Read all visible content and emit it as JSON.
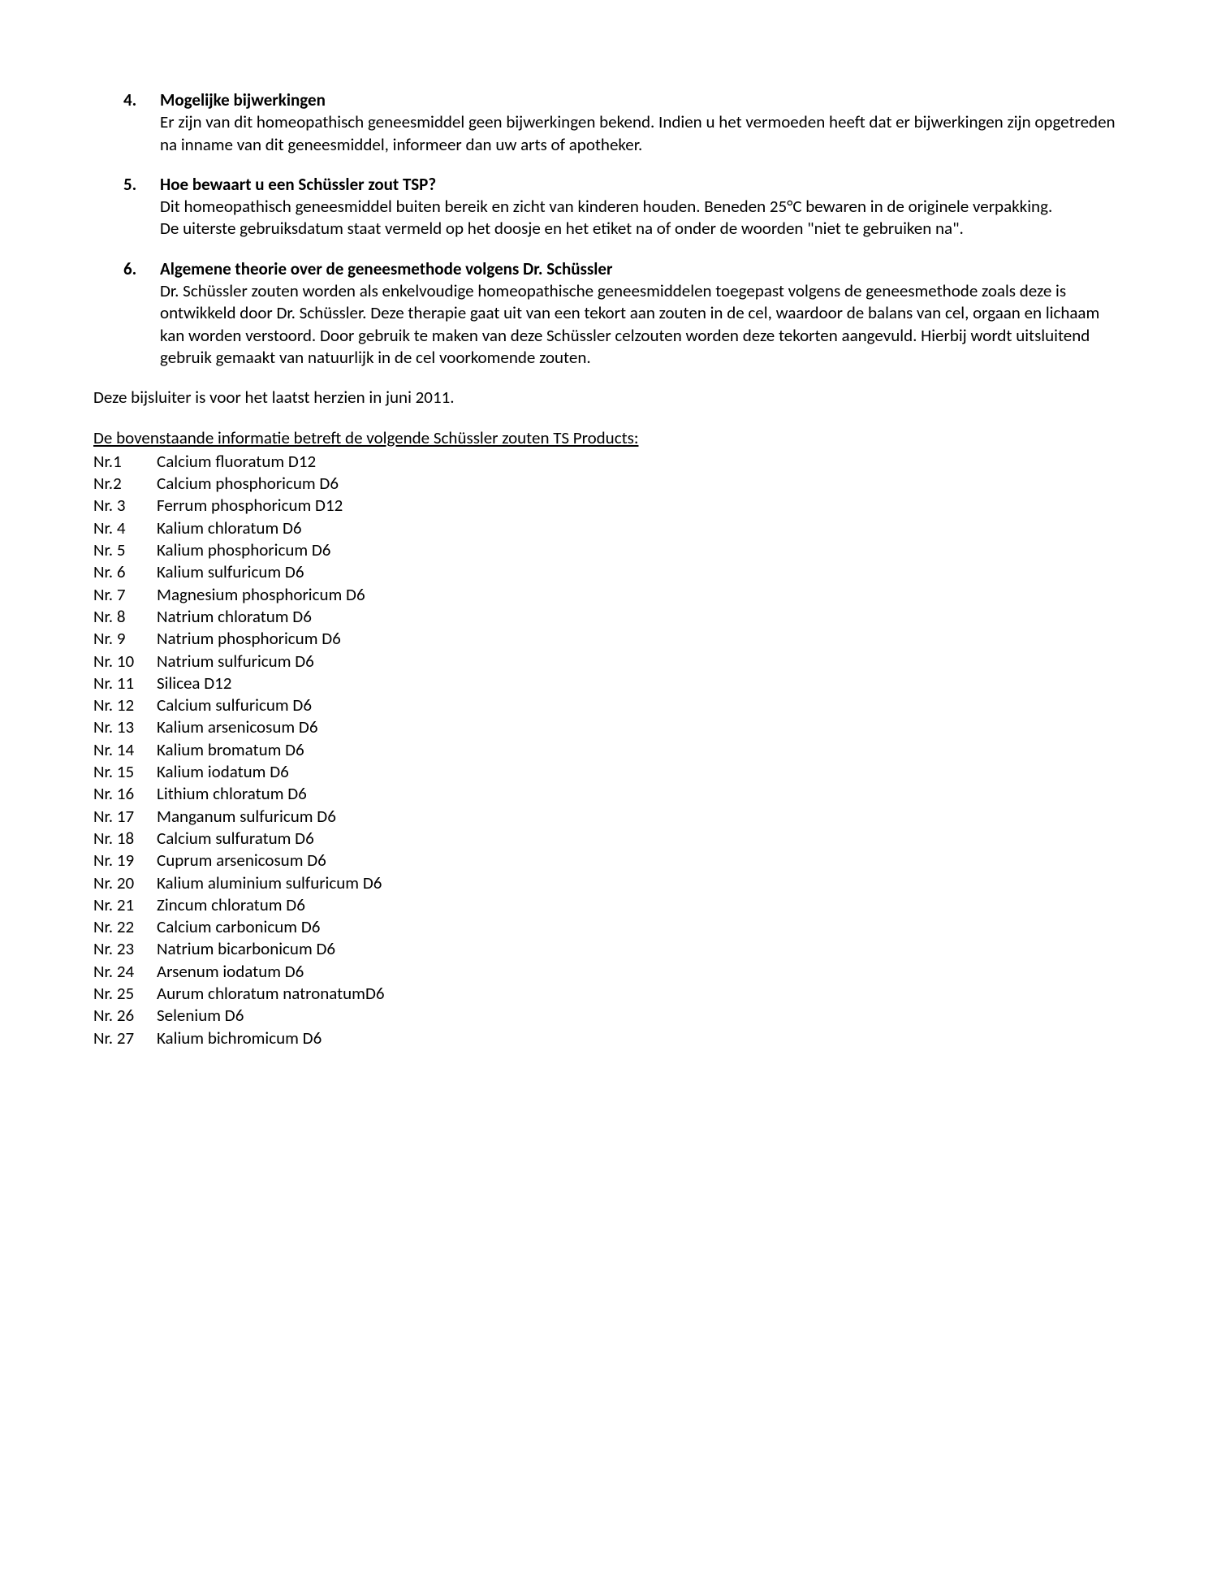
{
  "sections": [
    {
      "number": "4.",
      "heading": "Mogelijke bijwerkingen",
      "paragraphs": [
        "Er zijn van dit homeopathisch geneesmiddel geen bijwerkingen bekend. Indien u het vermoeden heeft dat er bijwerkingen zijn opgetreden na inname van dit geneesmiddel, informeer dan uw arts of apotheker."
      ]
    },
    {
      "number": "5.",
      "heading": "Hoe bewaart u een Schüssler zout TSP?",
      "paragraphs": [
        "Dit homeopathisch geneesmiddel buiten bereik en zicht van kinderen houden. Beneden 25°C bewaren in de originele verpakking.",
        "De uiterste gebruiksdatum staat vermeld op het doosje en het etiket na of onder de woorden \"niet te gebruiken na\"."
      ]
    },
    {
      "number": "6.",
      "heading": "Algemene theorie over de geneesmethode volgens Dr. Schüssler",
      "paragraphs": [
        "Dr. Schüssler zouten worden als enkelvoudige homeopathische geneesmiddelen toegepast volgens de geneesmethode zoals deze is ontwikkeld door Dr. Schüssler. Deze therapie gaat uit van een tekort aan zouten in de cel, waardoor de balans van cel, orgaan en lichaam kan worden verstoord. Door gebruik te maken van deze Schüssler celzouten worden deze tekorten aangevuld. Hierbij wordt uitsluitend gebruik gemaakt van natuurlijk in de cel voorkomende zouten."
      ]
    }
  ],
  "revision_line": "Deze bijsluiter is voor het laatst herzien in juni 2011.",
  "products_intro": "De bovenstaande informatie betreft de volgende Schüssler zouten TS Products:",
  "products": [
    {
      "num": "Nr.1",
      "name": "Calcium fluoratum D12"
    },
    {
      "num": "Nr.2",
      "name": "Calcium phosphoricum D6"
    },
    {
      "num": "Nr. 3",
      "name": "Ferrum phosphoricum D12"
    },
    {
      "num": "Nr. 4",
      "name": "Kalium chloratum D6"
    },
    {
      "num": "Nr. 5",
      "name": "Kalium phosphoricum D6"
    },
    {
      "num": "Nr. 6",
      "name": "Kalium sulfuricum D6"
    },
    {
      "num": "Nr. 7",
      "name": "Magnesium phosphoricum D6"
    },
    {
      "num": "Nr. 8",
      "name": "Natrium chloratum D6"
    },
    {
      "num": "Nr. 9",
      "name": "Natrium phosphoricum D6"
    },
    {
      "num": "Nr. 10",
      "name": "Natrium sulfuricum D6"
    },
    {
      "num": "Nr. 11",
      "name": "Silicea D12"
    },
    {
      "num": "Nr. 12",
      "name": "Calcium sulfuricum D6"
    },
    {
      "num": "Nr. 13",
      "name": "Kalium arsenicosum D6"
    },
    {
      "num": "Nr. 14",
      "name": "Kalium bromatum D6"
    },
    {
      "num": "Nr. 15",
      "name": "Kalium iodatum D6"
    },
    {
      "num": "Nr. 16",
      "name": "Lithium chloratum D6"
    },
    {
      "num": "Nr. 17",
      "name": "Manganum sulfuricum D6"
    },
    {
      "num": "Nr. 18",
      "name": "Calcium sulfuratum D6"
    },
    {
      "num": "Nr. 19",
      "name": "Cuprum arsenicosum D6"
    },
    {
      "num": "Nr. 20",
      "name": "Kalium aluminium sulfuricum D6"
    },
    {
      "num": "Nr. 21",
      "name": "Zincum chloratum D6"
    },
    {
      "num": "Nr. 22",
      "name": "Calcium carbonicum D6"
    },
    {
      "num": "Nr. 23",
      "name": "Natrium bicarbonicum D6"
    },
    {
      "num": "Nr. 24",
      "name": "Arsenum iodatum D6"
    },
    {
      "num": "Nr. 25",
      "name": "Aurum chloratum natronatumD6"
    },
    {
      "num": "Nr. 26",
      "name": "Selenium D6"
    },
    {
      "num": "Nr. 27",
      "name": "Kalium bichromicum D6"
    }
  ]
}
